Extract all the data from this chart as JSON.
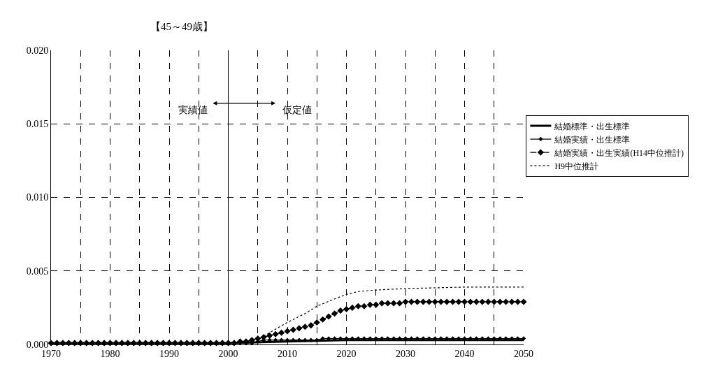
{
  "chart_data": {
    "type": "line",
    "title": "【45～49歳】",
    "annotations": [
      "実績値",
      "仮定値"
    ],
    "xlim": [
      1970,
      2050
    ],
    "xticks": [
      1970,
      {
        "value": 1975,
        "label": null
      },
      1980,
      {
        "value": 1985,
        "label": null
      },
      1990,
      {
        "value": 1995,
        "label": null
      },
      2000,
      {
        "value": 2005,
        "label": null
      },
      2010,
      {
        "value": 2015,
        "label": null
      },
      2020,
      {
        "value": 2025,
        "label": null
      },
      2030,
      {
        "value": 2035,
        "label": null
      },
      2040,
      {
        "value": 2045,
        "label": null
      },
      2050
    ],
    "ylim": [
      0,
      0.02
    ],
    "yticks": [
      {
        "value": 0,
        "label": "0.000"
      },
      {
        "value": 0.005,
        "label": "0.005"
      },
      {
        "value": 0.01,
        "label": "0.010"
      },
      {
        "value": 0.015,
        "label": "0.015"
      },
      {
        "value": 0.02,
        "label": "0.020"
      }
    ],
    "grid": true,
    "legend": "right",
    "ref_lines": [
      {
        "axis": "x",
        "value": 2000,
        "color": "#000000",
        "line_style": "solid"
      }
    ],
    "series": [
      {
        "name": "結婚標準・出生標準",
        "color": "#000000",
        "marker": "none",
        "line_style": "solid",
        "x": [
          1970,
          2000,
          2010,
          2020,
          2050
        ],
        "values": [
          0.0001,
          0.0001,
          0.0002,
          0.0003,
          0.0003
        ]
      },
      {
        "name": "結婚実績・出生標準",
        "color": "#000000",
        "marker": "diamond",
        "line_style": "solid",
        "x": [
          1970,
          1971,
          1972,
          1973,
          1974,
          1975,
          1976,
          1977,
          1978,
          1979,
          1980,
          1981,
          1982,
          1983,
          1984,
          1985,
          1986,
          1987,
          1988,
          1989,
          1990,
          1991,
          1992,
          1993,
          1994,
          1995,
          1996,
          1997,
          1998,
          1999,
          2000,
          2001,
          2002,
          2003,
          2004,
          2005,
          2006,
          2007,
          2008,
          2009,
          2010,
          2011,
          2012,
          2013,
          2014,
          2015,
          2016,
          2017,
          2018,
          2019,
          2020,
          2021,
          2022,
          2023,
          2024,
          2025,
          2026,
          2027,
          2028,
          2029,
          2030,
          2031,
          2032,
          2033,
          2034,
          2035,
          2036,
          2037,
          2038,
          2039,
          2040,
          2041,
          2042,
          2043,
          2044,
          2045,
          2046,
          2047,
          2048,
          2049,
          2050
        ],
        "values": [
          0.0001,
          0.0001,
          0.0001,
          0.0001,
          0.0001,
          0.0001,
          0.0001,
          0.0001,
          0.0001,
          0.0001,
          0.0001,
          0.0001,
          0.0001,
          0.0001,
          0.0001,
          0.0001,
          0.0001,
          0.0001,
          0.0001,
          0.0001,
          0.0001,
          0.0001,
          0.0001,
          0.0001,
          0.0001,
          0.0001,
          0.0001,
          0.0001,
          0.0001,
          0.0001,
          0.0001,
          0.0001,
          0.0001,
          0.0001,
          0.0001,
          0.0002,
          0.0003,
          0.0003,
          0.0003,
          0.0003,
          0.0003,
          0.0003,
          0.0003,
          0.0003,
          0.0003,
          0.0003,
          0.0004,
          0.0004,
          0.0004,
          0.0004,
          0.0004,
          0.0004,
          0.0004,
          0.0004,
          0.0004,
          0.0004,
          0.0004,
          0.0004,
          0.0004,
          0.0004,
          0.0004,
          0.0004,
          0.0004,
          0.0004,
          0.0004,
          0.0004,
          0.0004,
          0.0004,
          0.0004,
          0.0004,
          0.0004,
          0.0004,
          0.0004,
          0.0004,
          0.0004,
          0.0004,
          0.0004,
          0.0004,
          0.0004,
          0.0004,
          0.0004
        ]
      },
      {
        "name": "結婚実績・出生実績(H14中位推計)",
        "color": "#000000",
        "marker": "diamond",
        "line_style": "dashed",
        "x": [
          1970,
          1971,
          1972,
          1973,
          1974,
          1975,
          1976,
          1977,
          1978,
          1979,
          1980,
          1981,
          1982,
          1983,
          1984,
          1985,
          1986,
          1987,
          1988,
          1989,
          1990,
          1991,
          1992,
          1993,
          1994,
          1995,
          1996,
          1997,
          1998,
          1999,
          2000,
          2001,
          2002,
          2003,
          2004,
          2005,
          2006,
          2007,
          2008,
          2009,
          2010,
          2011,
          2012,
          2013,
          2014,
          2015,
          2016,
          2017,
          2018,
          2019,
          2020,
          2021,
          2022,
          2023,
          2024,
          2025,
          2026,
          2027,
          2028,
          2029,
          2030,
          2031,
          2032,
          2033,
          2034,
          2035,
          2036,
          2037,
          2038,
          2039,
          2040,
          2041,
          2042,
          2043,
          2044,
          2045,
          2046,
          2047,
          2048,
          2049,
          2050
        ],
        "values": [
          0.0001,
          0.0001,
          0.0001,
          0.0001,
          0.0001,
          0.0001,
          0.0001,
          0.0001,
          0.0001,
          0.0001,
          0.0001,
          0.0001,
          0.0001,
          0.0001,
          0.0001,
          0.0001,
          0.0001,
          0.0001,
          0.0001,
          0.0001,
          0.0001,
          0.0001,
          0.0001,
          0.0001,
          0.0001,
          0.0001,
          0.0001,
          0.0001,
          0.0001,
          0.0001,
          0.0001,
          0.0001,
          0.0002,
          0.0002,
          0.0003,
          0.0004,
          0.0005,
          0.0006,
          0.0007,
          0.0008,
          0.0009,
          0.001,
          0.0011,
          0.0012,
          0.0013,
          0.0015,
          0.0017,
          0.0019,
          0.0021,
          0.0023,
          0.0024,
          0.0025,
          0.0026,
          0.0026,
          0.0027,
          0.0027,
          0.0028,
          0.0028,
          0.0028,
          0.0028,
          0.0029,
          0.0029,
          0.0029,
          0.0029,
          0.0029,
          0.0029,
          0.0029,
          0.0029,
          0.0029,
          0.0029,
          0.0029,
          0.0029,
          0.0029,
          0.0029,
          0.0029,
          0.0029,
          0.0029,
          0.0029,
          0.0029,
          0.0029,
          0.0029
        ]
      },
      {
        "name": "H9中位推計",
        "color": "#000000",
        "marker": "none",
        "line_style": "dotted",
        "x": [
          1970,
          2000,
          2005,
          2007,
          2010,
          2013,
          2015,
          2018,
          2020,
          2022,
          2025,
          2030,
          2040,
          2050
        ],
        "values": [
          0.0001,
          0.0001,
          0.0003,
          0.0008,
          0.0015,
          0.0021,
          0.0026,
          0.0031,
          0.0034,
          0.0036,
          0.0037,
          0.0038,
          0.0039,
          0.0039
        ]
      }
    ]
  }
}
